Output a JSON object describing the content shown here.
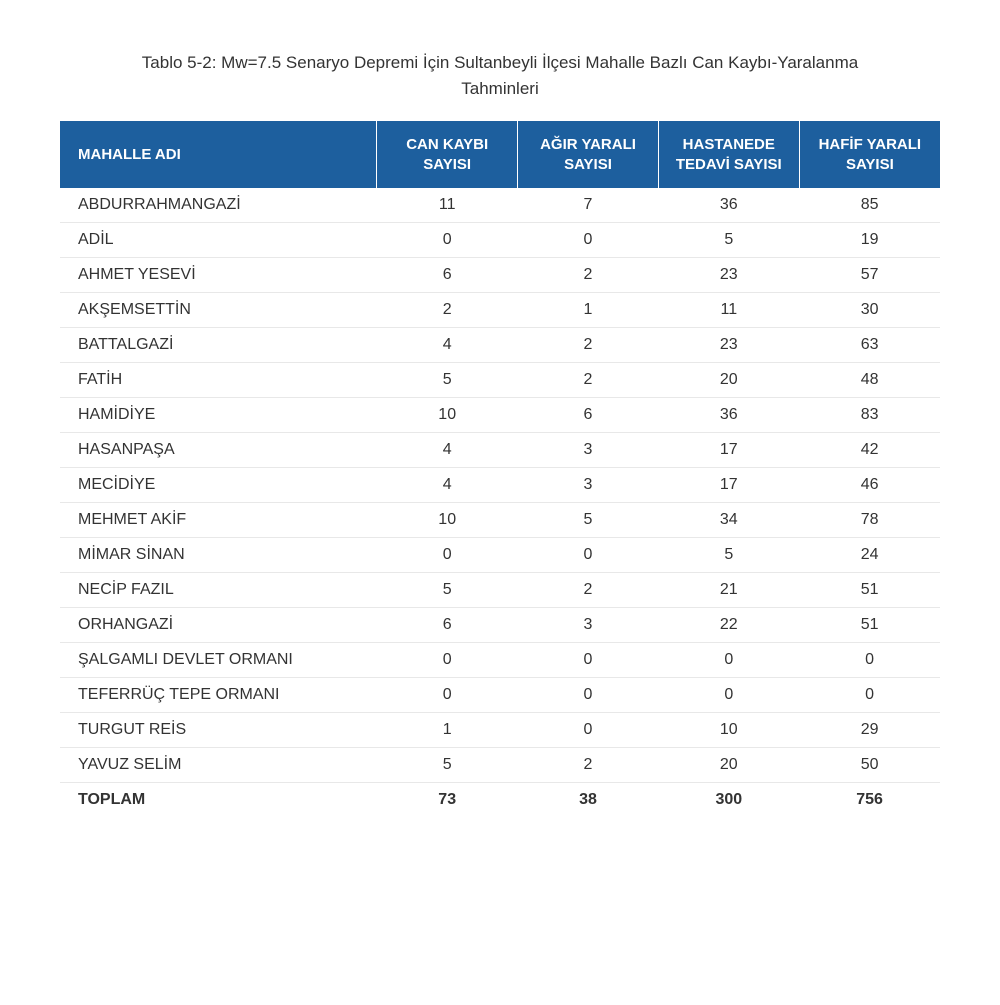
{
  "caption": "Tablo 5-2: Mw=7.5 Senaryo Depremi İçin Sultanbeyli İlçesi Mahalle Bazlı Can Kaybı-Yaralanma Tahminleri",
  "table": {
    "type": "table",
    "header_bg_color": "#1d5f9e",
    "header_text_color": "#ffffff",
    "body_text_color": "#333333",
    "row_border_color": "#e8e8e8",
    "font_family": "Arial",
    "header_fontsize": 15,
    "body_fontsize": 16,
    "columns": [
      "MAHALLE ADI",
      "CAN KAYBI SAYISI",
      "AĞIR YARALI SAYISI",
      "HASTANEDE TEDAVİ SAYISI",
      "HAFİF YARALI SAYISI"
    ],
    "rows": [
      [
        "ABDURRAHMANGAZİ",
        "11",
        "7",
        "36",
        "85"
      ],
      [
        "ADİL",
        "0",
        "0",
        "5",
        "19"
      ],
      [
        "AHMET YESEVİ",
        "6",
        "2",
        "23",
        "57"
      ],
      [
        "AKŞEMSETTİN",
        "2",
        "1",
        "11",
        "30"
      ],
      [
        "BATTALGAZİ",
        "4",
        "2",
        "23",
        "63"
      ],
      [
        "FATİH",
        "5",
        "2",
        "20",
        "48"
      ],
      [
        "HAMİDİYE",
        "10",
        "6",
        "36",
        "83"
      ],
      [
        "HASANPAŞA",
        "4",
        "3",
        "17",
        "42"
      ],
      [
        "MECİDİYE",
        "4",
        "3",
        "17",
        "46"
      ],
      [
        "MEHMET AKİF",
        "10",
        "5",
        "34",
        "78"
      ],
      [
        "MİMAR SİNAN",
        "0",
        "0",
        "5",
        "24"
      ],
      [
        "NECİP FAZIL",
        "5",
        "2",
        "21",
        "51"
      ],
      [
        "ORHANGAZİ",
        "6",
        "3",
        "22",
        "51"
      ],
      [
        "ŞALGAMLI DEVLET ORMANI",
        "0",
        "0",
        "0",
        "0"
      ],
      [
        "TEFERRÜÇ TEPE ORMANI",
        "0",
        "0",
        "0",
        "0"
      ],
      [
        "TURGUT REİS",
        "1",
        "0",
        "10",
        "29"
      ],
      [
        "YAVUZ SELİM",
        "5",
        "2",
        "20",
        "50"
      ]
    ],
    "total_row": [
      "TOPLAM",
      "73",
      "38",
      "300",
      "756"
    ]
  }
}
